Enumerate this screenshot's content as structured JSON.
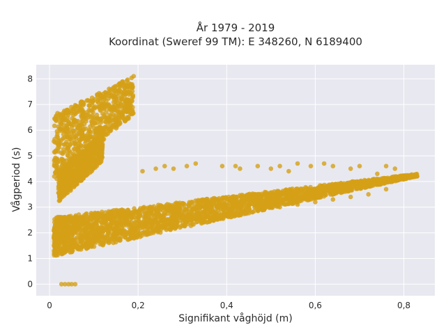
{
  "chart_data": {
    "type": "scatter",
    "title": [
      "År 1979 - 2019",
      "Koordinat (Sweref 99 TM): E 348260, N 6189400"
    ],
    "xlabel": "Signifikant våghöjd (m)",
    "ylabel": "Vågperiod (s)",
    "xlim": [
      -0.03,
      0.87
    ],
    "ylim": [
      -0.45,
      8.55
    ],
    "x_ticks": [
      0,
      0.2,
      0.4,
      0.6,
      0.8
    ],
    "x_tick_labels": [
      "0",
      "0,2",
      "0,4",
      "0,6",
      "0,8"
    ],
    "y_ticks": [
      0,
      1,
      2,
      3,
      4,
      5,
      6,
      7,
      8
    ],
    "y_tick_labels": [
      "0",
      "1",
      "2",
      "3",
      "4",
      "5",
      "6",
      "7",
      "8"
    ],
    "grid": true,
    "colors": {
      "marker": "#D4A017",
      "plot_bg": "#E8E8F0",
      "grid": "#FFFFFF"
    },
    "clusters": [
      {
        "name": "main band",
        "x_range": [
          0.01,
          0.83
        ],
        "y_lower": [
          1.1,
          4.2
        ],
        "y_upper": [
          2.6,
          4.3
        ],
        "density": "high"
      },
      {
        "name": "upper branch",
        "x_range": [
          0.01,
          0.19
        ],
        "y_lower": [
          4.0,
          6.6
        ],
        "y_upper": [
          6.6,
          8.1
        ],
        "density": "medium"
      },
      {
        "name": "middle branch",
        "x_range": [
          0.02,
          0.12
        ],
        "y_lower": [
          3.2,
          4.8
        ],
        "y_upper": [
          4.4,
          5.9
        ],
        "density": "medium"
      }
    ],
    "points": [
      [
        0.027,
        0.0
      ],
      [
        0.035,
        0.0
      ],
      [
        0.043,
        0.0
      ],
      [
        0.05,
        0.0
      ],
      [
        0.058,
        0.0
      ],
      [
        0.19,
        8.1
      ],
      [
        0.165,
        7.9
      ],
      [
        0.18,
        7.6
      ],
      [
        0.17,
        6.9
      ],
      [
        0.165,
        6.6
      ],
      [
        0.83,
        4.2
      ],
      [
        0.81,
        4.2
      ],
      [
        0.79,
        4.2
      ],
      [
        0.78,
        4.5
      ],
      [
        0.76,
        4.6
      ],
      [
        0.74,
        4.3
      ],
      [
        0.7,
        4.6
      ],
      [
        0.68,
        4.5
      ],
      [
        0.64,
        4.6
      ],
      [
        0.62,
        4.7
      ],
      [
        0.59,
        4.6
      ],
      [
        0.56,
        4.7
      ],
      [
        0.54,
        4.4
      ],
      [
        0.52,
        4.6
      ],
      [
        0.5,
        4.5
      ],
      [
        0.47,
        4.6
      ],
      [
        0.43,
        4.5
      ],
      [
        0.42,
        4.6
      ],
      [
        0.39,
        4.6
      ],
      [
        0.33,
        4.7
      ],
      [
        0.31,
        4.6
      ],
      [
        0.28,
        4.5
      ],
      [
        0.26,
        4.6
      ],
      [
        0.24,
        4.5
      ],
      [
        0.21,
        4.4
      ],
      [
        0.76,
        3.7
      ],
      [
        0.72,
        3.5
      ],
      [
        0.68,
        3.4
      ],
      [
        0.64,
        3.3
      ],
      [
        0.6,
        3.2
      ],
      [
        0.56,
        3.1
      ],
      [
        0.52,
        3.0
      ],
      [
        0.48,
        2.9
      ],
      [
        0.44,
        2.8
      ],
      [
        0.4,
        2.7
      ],
      [
        0.36,
        2.6
      ],
      [
        0.32,
        2.5
      ],
      [
        0.28,
        2.4
      ],
      [
        0.24,
        2.3
      ],
      [
        0.2,
        2.1
      ]
    ]
  }
}
